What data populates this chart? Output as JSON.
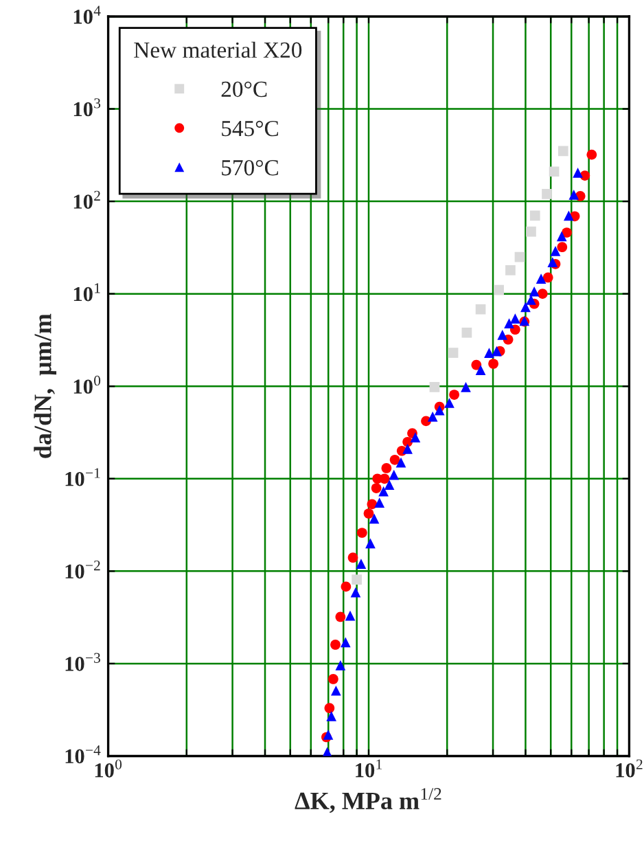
{
  "chart_data": {
    "type": "scatter",
    "xlabel": "ΔK, MPa m$^{1/2}$",
    "ylabel": "da/dN,  μm/m",
    "legend_title": "New material X20",
    "legend": "top left",
    "log": "xy",
    "grid": true,
    "xlim": [
      1,
      100
    ],
    "xticks": [
      {
        "value": 1,
        "label": "10$^{0}$"
      },
      {
        "value": 2,
        "label": null
      },
      {
        "value": 3,
        "label": null
      },
      {
        "value": 4,
        "label": null
      },
      {
        "value": 5,
        "label": null
      },
      {
        "value": 6,
        "label": null
      },
      {
        "value": 7,
        "label": null
      },
      {
        "value": 8,
        "label": null
      },
      {
        "value": 9,
        "label": null
      },
      {
        "value": 10,
        "label": "10$^{1}$"
      },
      {
        "value": 20,
        "label": null
      },
      {
        "value": 30,
        "label": null
      },
      {
        "value": 40,
        "label": null
      },
      {
        "value": 50,
        "label": null
      },
      {
        "value": 60,
        "label": null
      },
      {
        "value": 70,
        "label": null
      },
      {
        "value": 80,
        "label": null
      },
      {
        "value": 90,
        "label": null
      },
      {
        "value": 100,
        "label": "10$^{2}$"
      }
    ],
    "ylim": [
      0.0001,
      10000
    ],
    "yticks": [
      {
        "value": 0.0001,
        "label": "10$^{−4}$"
      },
      {
        "value": 0.001,
        "label": "10$^{−3}$"
      },
      {
        "value": 0.01,
        "label": "10$^{−2}$"
      },
      {
        "value": 0.1,
        "label": "10$^{−1}$"
      },
      {
        "value": 1,
        "label": "10$^{0}$"
      },
      {
        "value": 10,
        "label": "10$^{1}$"
      },
      {
        "value": 100,
        "label": "10$^{2}$"
      },
      {
        "value": 1000,
        "label": "10$^{3}$"
      },
      {
        "value": 10000,
        "label": "10$^{4}$"
      }
    ],
    "series": [
      {
        "name": "20°C",
        "color": "#d9d9d9",
        "marker": "square",
        "x": [
          9.0,
          17.9,
          21.1,
          23.8,
          26.9,
          31.6,
          35.0,
          38.0,
          42.0,
          43.5,
          48.3,
          51.5,
          55.8
        ],
        "values": [
          0.0081,
          0.98,
          2.3,
          3.8,
          6.8,
          11,
          18,
          25,
          47,
          70,
          120,
          210,
          350
        ]
      },
      {
        "name": "545°C",
        "color": "#ff0000",
        "marker": "circle",
        "x": [
          6.88,
          7.07,
          7.31,
          7.45,
          7.79,
          8.18,
          8.7,
          9.43,
          10.0,
          10.3,
          10.7,
          10.8,
          11.5,
          11.7,
          12.6,
          13.4,
          14.1,
          14.7,
          16.6,
          18.7,
          21.3,
          25.9,
          30.1,
          31.9,
          34.3,
          36.5,
          39.6,
          43.2,
          46.5,
          48.8,
          52.1,
          55.3,
          57.6,
          61.8,
          64.9,
          67.6,
          71.8
        ],
        "values": [
          0.00016,
          0.00033,
          0.00068,
          0.0016,
          0.0032,
          0.0068,
          0.014,
          0.026,
          0.042,
          0.053,
          0.079,
          0.1,
          0.1,
          0.13,
          0.16,
          0.2,
          0.25,
          0.31,
          0.42,
          0.6,
          0.81,
          1.7,
          1.75,
          2.4,
          3.2,
          4.1,
          5.0,
          7.8,
          10,
          15,
          21,
          32,
          46,
          69,
          114,
          190,
          320
        ]
      },
      {
        "name": "570°C",
        "color": "#0000ff",
        "marker": "triangle",
        "x": [
          6.93,
          6.99,
          7.19,
          7.49,
          7.79,
          8.15,
          8.49,
          8.91,
          9.35,
          10.15,
          10.5,
          11.0,
          11.4,
          12.0,
          12.5,
          13.3,
          14.1,
          15.1,
          17.6,
          18.7,
          20.4,
          23.6,
          26.9,
          29.0,
          31.0,
          32.6,
          34.6,
          36.5,
          39.6,
          40.0,
          42.0,
          43.2,
          45.9,
          50.8,
          52.1,
          55.1,
          58.6,
          61.3,
          63.5
        ],
        "values": [
          0.00011,
          0.00017,
          0.00027,
          0.00051,
          0.00096,
          0.0017,
          0.0033,
          0.0059,
          0.012,
          0.02,
          0.037,
          0.055,
          0.073,
          0.086,
          0.11,
          0.15,
          0.21,
          0.28,
          0.47,
          0.55,
          0.66,
          0.98,
          1.5,
          2.3,
          2.4,
          3.6,
          4.8,
          5.4,
          5.1,
          7.2,
          8.6,
          10.6,
          14.6,
          22,
          29,
          42,
          70,
          118,
          204
        ]
      }
    ]
  }
}
